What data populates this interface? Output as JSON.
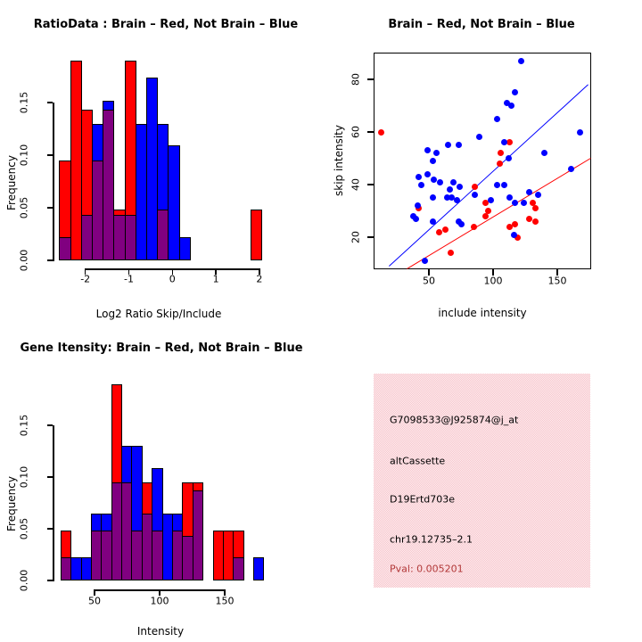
{
  "colors": {
    "red": "#FF0000",
    "blue": "#0000FF",
    "overlap": "#800080",
    "pval_text": "#B23939",
    "panel_pink": "#F8D2D8",
    "axis": "#000000"
  },
  "chart_data": [
    {
      "id": "ratio_hist",
      "type": "bar",
      "title": "RatioData : Brain – Red, Not Brain – Blue",
      "xlabel": "Log2 Ratio Skip/Include",
      "ylabel": "Frequency",
      "legend": [
        {
          "name": "Brain",
          "color": "red"
        },
        {
          "name": "Not Brain",
          "color": "blue"
        }
      ],
      "xlim": [
        -2.8,
        2.1
      ],
      "ylim": [
        0,
        0.19
      ],
      "grid": false,
      "x_ticks": [
        {
          "v": -2,
          "label": "-2"
        },
        {
          "v": -1,
          "label": "-1"
        },
        {
          "v": 0,
          "label": "0"
        },
        {
          "v": 1,
          "label": "1"
        },
        {
          "v": 2,
          "label": "2"
        }
      ],
      "y_ticks": [
        {
          "v": 0.0,
          "label": "0.00"
        },
        {
          "v": 0.05,
          "label": "0.05"
        },
        {
          "v": 0.1,
          "label": "0.10"
        },
        {
          "v": 0.15,
          "label": "0.15"
        }
      ],
      "bins": [
        {
          "x0": -2.6,
          "x1": -2.35,
          "red": 0.095,
          "blue": 0.022
        },
        {
          "x0": -2.35,
          "x1": -2.1,
          "red": 0.19,
          "blue": 0.0
        },
        {
          "x0": -2.1,
          "x1": -1.85,
          "red": 0.143,
          "blue": 0.043
        },
        {
          "x0": -1.85,
          "x1": -1.6,
          "red": 0.095,
          "blue": 0.13
        },
        {
          "x0": -1.6,
          "x1": -1.35,
          "red": 0.143,
          "blue": 0.152
        },
        {
          "x0": -1.35,
          "x1": -1.1,
          "red": 0.048,
          "blue": 0.043
        },
        {
          "x0": -1.1,
          "x1": -0.85,
          "red": 0.19,
          "blue": 0.043
        },
        {
          "x0": -0.85,
          "x1": -0.6,
          "red": 0.0,
          "blue": 0.13
        },
        {
          "x0": -0.6,
          "x1": -0.35,
          "red": 0.0,
          "blue": 0.174
        },
        {
          "x0": -0.35,
          "x1": -0.1,
          "red": 0.048,
          "blue": 0.13
        },
        {
          "x0": -0.1,
          "x1": 0.15,
          "red": 0.0,
          "blue": 0.109
        },
        {
          "x0": 0.15,
          "x1": 0.4,
          "red": 0.0,
          "blue": 0.022
        },
        {
          "x0": 1.79,
          "x1": 2.04,
          "red": 0.048,
          "blue": 0.0
        }
      ]
    },
    {
      "id": "scatter",
      "type": "scatter",
      "title": "Brain – Red, Not Brain – Blue",
      "xlabel": "include intensity",
      "ylabel": "skip intensity",
      "xlim": [
        7,
        176
      ],
      "ylim": [
        9,
        90
      ],
      "grid": false,
      "x_ticks": [
        {
          "v": 50,
          "label": "50"
        },
        {
          "v": 100,
          "label": "100"
        },
        {
          "v": 150,
          "label": "150"
        }
      ],
      "y_ticks": [
        {
          "v": 20,
          "label": "20"
        },
        {
          "v": 40,
          "label": "40"
        },
        {
          "v": 60,
          "label": "60"
        },
        {
          "v": 80,
          "label": "80"
        }
      ],
      "series": [
        {
          "name": "Brain",
          "color": "red",
          "points": [
            [
              13,
              60
            ],
            [
              113,
              56
            ],
            [
              106,
              52
            ],
            [
              105,
              48
            ],
            [
              86,
              39
            ],
            [
              42,
              31
            ],
            [
              94,
              33
            ],
            [
              96,
              30
            ],
            [
              94,
              28
            ],
            [
              131,
              33
            ],
            [
              133,
              31
            ],
            [
              128,
              27
            ],
            [
              133,
              26
            ],
            [
              113,
              24
            ],
            [
              117,
              25
            ],
            [
              119,
              20
            ],
            [
              85,
              24
            ],
            [
              63,
              23
            ],
            [
              58,
              22
            ],
            [
              67,
              14
            ]
          ]
        },
        {
          "name": "Not Brain",
          "color": "blue",
          "points": [
            [
              122,
              87
            ],
            [
              117,
              75
            ],
            [
              111,
              71
            ],
            [
              114,
              70
            ],
            [
              103,
              65
            ],
            [
              89,
              58
            ],
            [
              109,
              56
            ],
            [
              112,
              50
            ],
            [
              140,
              52
            ],
            [
              161,
              46
            ],
            [
              168,
              60
            ],
            [
              49,
              53
            ],
            [
              56,
              52
            ],
            [
              65,
              55
            ],
            [
              73,
              55
            ],
            [
              53,
              49
            ],
            [
              49,
              44
            ],
            [
              54,
              42
            ],
            [
              59,
              41
            ],
            [
              44,
              40
            ],
            [
              69,
              41
            ],
            [
              74,
              39
            ],
            [
              42,
              43
            ],
            [
              103,
              40
            ],
            [
              109,
              40
            ],
            [
              128,
              37
            ],
            [
              135,
              36
            ],
            [
              98,
              34
            ],
            [
              117,
              33
            ],
            [
              124,
              33
            ],
            [
              113,
              35
            ],
            [
              86,
              36
            ],
            [
              66,
              38
            ],
            [
              64,
              35
            ],
            [
              68,
              35
            ],
            [
              72,
              34
            ],
            [
              53,
              35
            ],
            [
              41,
              32
            ],
            [
              38,
              28
            ],
            [
              40,
              27
            ],
            [
              53,
              26
            ],
            [
              73,
              26
            ],
            [
              75,
              25
            ],
            [
              116,
              21
            ],
            [
              47,
              11
            ]
          ]
        }
      ],
      "fit_lines": [
        {
          "color": "blue",
          "x1": 19,
          "y1": 9,
          "x2": 174,
          "y2": 78
        },
        {
          "color": "red",
          "x1": 33,
          "y1": 8,
          "x2": 176,
          "y2": 50
        }
      ]
    },
    {
      "id": "gene_hist",
      "type": "bar",
      "title": "Gene Itensity: Brain – Red, Not Brain – Blue",
      "xlabel": "Intensity",
      "ylabel": "Frequency",
      "legend": [
        {
          "name": "Brain",
          "color": "red"
        },
        {
          "name": "Not Brain",
          "color": "blue"
        }
      ],
      "xlim": [
        20,
        185
      ],
      "ylim": [
        0,
        0.19
      ],
      "grid": false,
      "x_ticks": [
        {
          "v": 50,
          "label": "50"
        },
        {
          "v": 100,
          "label": "100"
        },
        {
          "v": 150,
          "label": "150"
        }
      ],
      "y_ticks": [
        {
          "v": 0.0,
          "label": "0.00"
        },
        {
          "v": 0.05,
          "label": "0.05"
        },
        {
          "v": 0.1,
          "label": "0.10"
        },
        {
          "v": 0.15,
          "label": "0.15"
        }
      ],
      "bins": [
        {
          "x0": 23.8,
          "x1": 31.6,
          "red": 0.048,
          "blue": 0.022
        },
        {
          "x0": 31.6,
          "x1": 39.4,
          "red": 0.0,
          "blue": 0.022
        },
        {
          "x0": 39.4,
          "x1": 47.2,
          "red": 0.0,
          "blue": 0.022
        },
        {
          "x0": 47.2,
          "x1": 55.0,
          "red": 0.048,
          "blue": 0.065
        },
        {
          "x0": 55.0,
          "x1": 62.8,
          "red": 0.048,
          "blue": 0.065
        },
        {
          "x0": 62.8,
          "x1": 70.6,
          "red": 0.19,
          "blue": 0.095
        },
        {
          "x0": 70.6,
          "x1": 78.4,
          "red": 0.095,
          "blue": 0.13
        },
        {
          "x0": 78.4,
          "x1": 86.2,
          "red": 0.048,
          "blue": 0.13
        },
        {
          "x0": 86.2,
          "x1": 94.0,
          "red": 0.095,
          "blue": 0.065
        },
        {
          "x0": 94.0,
          "x1": 101.8,
          "red": 0.048,
          "blue": 0.109
        },
        {
          "x0": 101.8,
          "x1": 109.6,
          "red": 0.0,
          "blue": 0.065
        },
        {
          "x0": 109.6,
          "x1": 117.4,
          "red": 0.048,
          "blue": 0.065
        },
        {
          "x0": 117.4,
          "x1": 125.2,
          "red": 0.095,
          "blue": 0.043
        },
        {
          "x0": 125.2,
          "x1": 133.0,
          "red": 0.095,
          "blue": 0.087
        },
        {
          "x0": 140.8,
          "x1": 148.6,
          "red": 0.048,
          "blue": 0.0
        },
        {
          "x0": 148.6,
          "x1": 156.4,
          "red": 0.048,
          "blue": 0.0
        },
        {
          "x0": 156.4,
          "x1": 164.2,
          "red": 0.048,
          "blue": 0.022
        },
        {
          "x0": 172.0,
          "x1": 179.8,
          "red": 0.0,
          "blue": 0.022
        }
      ]
    }
  ],
  "info_panel": {
    "lines": [
      "G7098533@J925874@j_at",
      "altCassette",
      "D19Ertd703e",
      "chr19.12735–2.1"
    ],
    "pval": "Pval: 0.005201"
  }
}
